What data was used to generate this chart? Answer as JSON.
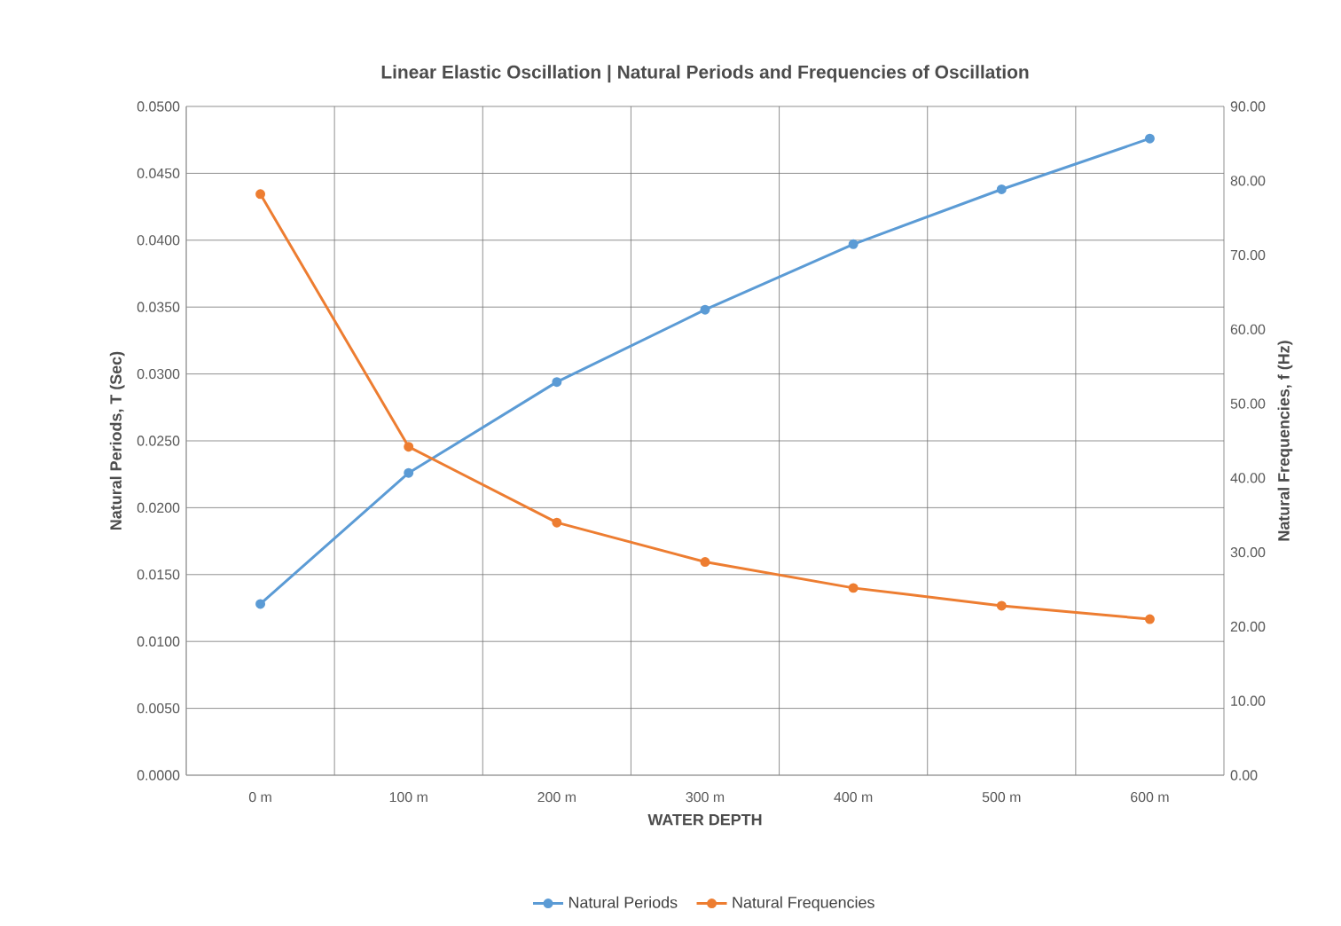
{
  "chart_data": {
    "type": "line",
    "title": "Linear Elastic Oscillation | Natural Periods and Frequencies of Oscillation",
    "xlabel": "WATER DEPTH",
    "ylabel": "Natural Periods, T (Sec)",
    "y2label": "Natural Frequencies, f (Hz)",
    "categories": [
      "0 m",
      "100 m",
      "200 m",
      "300 m",
      "400 m",
      "500 m",
      "600 m"
    ],
    "series": [
      {
        "name": "Natural Periods",
        "color": "#5b9bd5",
        "values": [
          0.0128,
          0.0226,
          0.0294,
          0.0348,
          0.0397,
          0.0438,
          0.0476
        ]
      },
      {
        "name": "Natural Frequencies",
        "color": "#ed7d31",
        "axis": "y2",
        "values": [
          78.2,
          44.2,
          34.0,
          28.7,
          25.2,
          22.8,
          21.0
        ]
      }
    ],
    "ylim": [
      0,
      0.05
    ],
    "yticks": [
      {
        "value": 0,
        "label": "0.0000"
      },
      {
        "value": 0.005,
        "label": "0.0050"
      },
      {
        "value": 0.01,
        "label": "0.0100"
      },
      {
        "value": 0.015,
        "label": "0.0150"
      },
      {
        "value": 0.02,
        "label": "0.0200"
      },
      {
        "value": 0.025,
        "label": "0.0250"
      },
      {
        "value": 0.03,
        "label": "0.0300"
      },
      {
        "value": 0.035,
        "label": "0.0350"
      },
      {
        "value": 0.04,
        "label": "0.0400"
      },
      {
        "value": 0.045,
        "label": "0.0450"
      },
      {
        "value": 0.05,
        "label": "0.0500"
      }
    ],
    "y2lim": [
      0,
      90
    ],
    "y2ticks": [
      {
        "value": 0,
        "label": "0.00"
      },
      {
        "value": 10,
        "label": "10.00"
      },
      {
        "value": 20,
        "label": "20.00"
      },
      {
        "value": 30,
        "label": "30.00"
      },
      {
        "value": 40,
        "label": "40.00"
      },
      {
        "value": 50,
        "label": "50.00"
      },
      {
        "value": 60,
        "label": "60.00"
      },
      {
        "value": 70,
        "label": "70.00"
      },
      {
        "value": 80,
        "label": "80.00"
      },
      {
        "value": 90,
        "label": "90.00"
      }
    ],
    "grid": true,
    "legend": "bottom",
    "marker": "circle",
    "line_style": "solid"
  }
}
